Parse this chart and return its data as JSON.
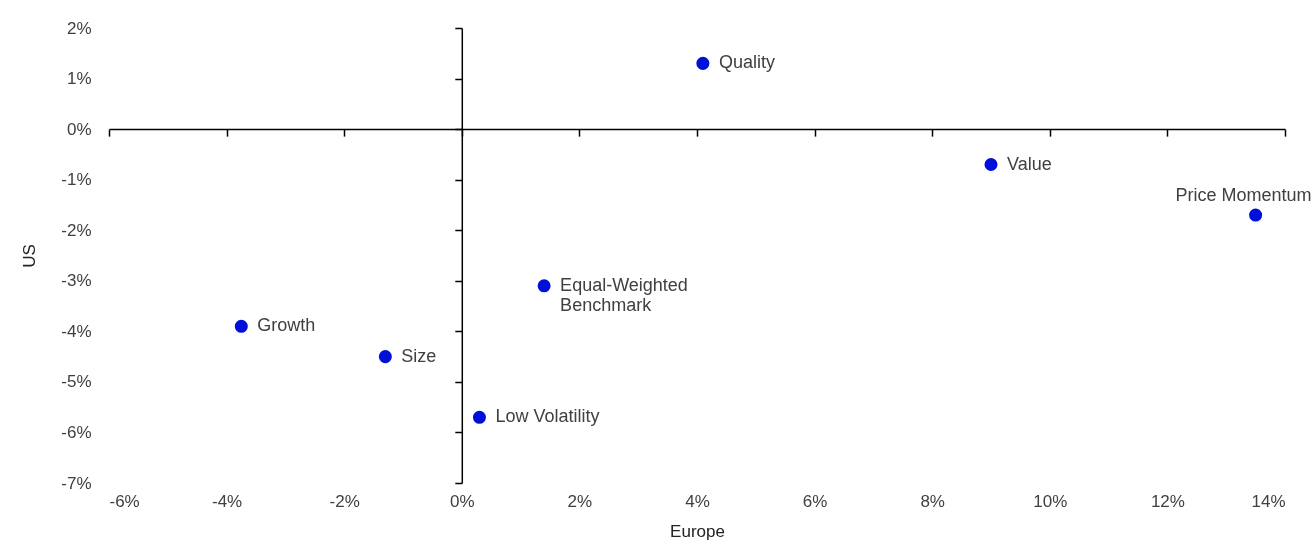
{
  "chart_data": {
    "type": "scatter",
    "xlabel": "Europe",
    "ylabel": "US",
    "x": [
      4.1,
      9.0,
      13.5,
      1.4,
      -3.75,
      -1.3,
      0.3
    ],
    "series": [
      {
        "color": "#0010d8",
        "values": [
          1.3,
          -0.7,
          -1.7,
          -3.1,
          -3.9,
          -4.5,
          -5.7
        ]
      }
    ],
    "annotations": [
      {
        "text": "Quality",
        "x": 4.1,
        "y": 1.3
      },
      {
        "text": "Value",
        "x": 9.0,
        "y": -0.7
      },
      {
        "text": "Price Momentum",
        "x": 13.5,
        "y": -1.7
      },
      {
        "text": "Equal-Weighted\nBenchmark",
        "x": 1.4,
        "y": -3.1
      },
      {
        "text": "Growth",
        "x": -3.75,
        "y": -3.9
      },
      {
        "text": "Size",
        "x": -1.3,
        "y": -4.5
      },
      {
        "text": "Low Volatility",
        "x": 0.3,
        "y": -5.7
      }
    ],
    "xlim": [
      -6,
      14
    ],
    "xticks": [
      {
        "value": -6,
        "label": "-6%"
      },
      {
        "value": -4,
        "label": "-4%"
      },
      {
        "value": -2,
        "label": "-2%"
      },
      {
        "value": 0,
        "label": "0%"
      },
      {
        "value": 2,
        "label": "2%"
      },
      {
        "value": 4,
        "label": "4%"
      },
      {
        "value": 6,
        "label": "6%"
      },
      {
        "value": 8,
        "label": "8%"
      },
      {
        "value": 10,
        "label": "10%"
      },
      {
        "value": 12,
        "label": "12%"
      },
      {
        "value": 14,
        "label": "14%"
      }
    ],
    "ylim": [
      -7,
      2
    ],
    "yticks": [
      {
        "value": -7,
        "label": "-7%"
      },
      {
        "value": -6,
        "label": "-6%"
      },
      {
        "value": -5,
        "label": "-5%"
      },
      {
        "value": -4,
        "label": "-4%"
      },
      {
        "value": -3,
        "label": "-3%"
      },
      {
        "value": -2,
        "label": "-2%"
      },
      {
        "value": -1,
        "label": "-1%"
      },
      {
        "value": 0,
        "label": "0%"
      },
      {
        "value": 1,
        "label": "1%"
      },
      {
        "value": 2,
        "label": "2%"
      }
    ],
    "marker": "circle"
  }
}
